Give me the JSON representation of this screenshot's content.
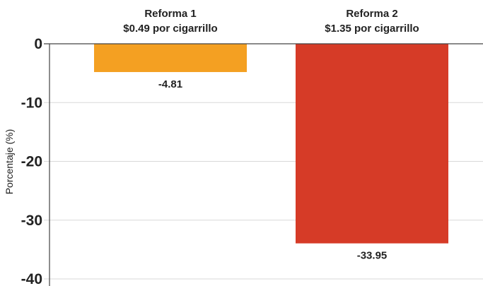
{
  "chart_data": {
    "type": "bar",
    "categories": [
      [
        "Reforma 1",
        "$0.49 por cigarrillo"
      ],
      [
        "Reforma 2",
        "$1.35 por cigarrillo"
      ]
    ],
    "values": [
      -4.81,
      -33.95
    ],
    "data_labels": [
      "-4.81",
      "-33.95"
    ],
    "colors": [
      "#f4a022",
      "#d63b27"
    ],
    "xlabel": "",
    "ylabel": "Porcentaje (%)",
    "ylim": [
      -40,
      0
    ],
    "yticks": [
      0,
      -10,
      -20,
      -30,
      -40
    ],
    "ytick_labels": [
      "0",
      "-10",
      "-20",
      "-30",
      "-40"
    ],
    "grid": true,
    "category_label_position": "top"
  }
}
